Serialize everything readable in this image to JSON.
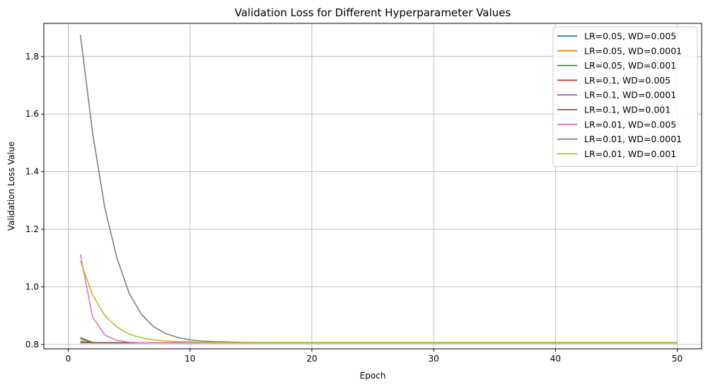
{
  "chart_data": {
    "type": "line",
    "title": "Validation Loss for Different Hyperparameter Values",
    "xlabel": "Epoch",
    "ylabel": "Validation Loss Value",
    "xlim": [
      -2,
      52
    ],
    "ylim": [
      0.785,
      1.915
    ],
    "xticks": [
      0,
      10,
      20,
      30,
      40,
      50
    ],
    "yticks": [
      0.8,
      1.0,
      1.2,
      1.4,
      1.6,
      1.8
    ],
    "ytick_labels": [
      "0.8",
      "1.0",
      "1.2",
      "1.4",
      "1.6",
      "1.8"
    ],
    "grid": true,
    "legend_position": "top-right",
    "epochs": [
      1,
      50
    ],
    "series": [
      {
        "name": "LR=0.05, WD=0.005",
        "color": "#1f77b4",
        "values": [
          0.82,
          0.806
        ]
      },
      {
        "name": "LR=0.05, WD=0.0001",
        "color": "#ff7f0e",
        "values": [
          0.822,
          0.806
        ]
      },
      {
        "name": "LR=0.05, WD=0.001",
        "color": "#2ca02c",
        "values": [
          0.824,
          0.807,
          0.806
        ]
      },
      {
        "name": "LR=0.1, WD=0.005",
        "color": "#d62728",
        "values": [
          0.81,
          0.806
        ]
      },
      {
        "name": "LR=0.1, WD=0.0001",
        "color": "#9467bd",
        "values": [
          0.808,
          0.806
        ]
      },
      {
        "name": "LR=0.1, WD=0.001",
        "color": "#8c564b",
        "values": [
          0.806,
          0.806
        ]
      },
      {
        "name": "LR=0.01, WD=0.005",
        "color": "#e377c2",
        "values": [
          1.112,
          0.895,
          0.833,
          0.814,
          0.808,
          0.806
        ]
      },
      {
        "name": "LR=0.01, WD=0.0001",
        "color": "#7f7f7f",
        "values": [
          1.875,
          1.535,
          1.275,
          1.1,
          0.978,
          0.905,
          0.862,
          0.838,
          0.824,
          0.816,
          0.812,
          0.81,
          0.809,
          0.808,
          0.807,
          0.806
        ]
      },
      {
        "name": "LR=0.01, WD=0.001",
        "color": "#bcbd22",
        "values": [
          1.09,
          0.972,
          0.9,
          0.86,
          0.836,
          0.823,
          0.816,
          0.812,
          0.81,
          0.809,
          0.808,
          0.807,
          0.807,
          0.807,
          0.807,
          0.807
        ]
      }
    ]
  }
}
